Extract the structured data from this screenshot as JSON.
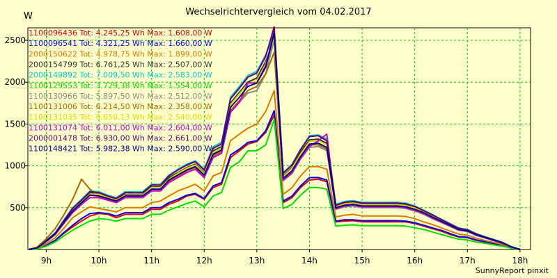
{
  "chart_data": {
    "type": "line",
    "title": "Wechselrichtervergleich vom 04.02.2017",
    "ylabel": "W",
    "xlabel": "",
    "xlim": [
      8.65,
      18.2
    ],
    "ylim": [
      0,
      2650
    ],
    "x_ticks": [
      9,
      10,
      11,
      12,
      13,
      14,
      15,
      16,
      17,
      18
    ],
    "x_tick_labels": [
      "9h",
      "10h",
      "11h",
      "12h",
      "13h",
      "14h",
      "15h",
      "16h",
      "17h",
      "18h"
    ],
    "y_ticks": [
      500,
      1000,
      1500,
      2000,
      2500
    ],
    "y_tick_labels": [
      "500",
      "1000",
      "1500",
      "2000",
      "2500"
    ],
    "grid": true,
    "grid_color": "#00cc00",
    "legend_placement": "top-left",
    "x": [
      8.67,
      8.83,
      9.0,
      9.17,
      9.33,
      9.5,
      9.67,
      9.83,
      10.0,
      10.17,
      10.33,
      10.5,
      10.67,
      10.83,
      11.0,
      11.17,
      11.33,
      11.5,
      11.67,
      11.83,
      12.0,
      12.17,
      12.33,
      12.5,
      12.67,
      12.83,
      13.0,
      13.17,
      13.33,
      13.5,
      13.67,
      13.83,
      14.0,
      14.17,
      14.33,
      14.5,
      14.67,
      14.83,
      15.0,
      15.17,
      15.33,
      15.5,
      15.67,
      15.83,
      16.0,
      16.17,
      16.33,
      16.5,
      16.67,
      16.83,
      17.0,
      17.17,
      17.33,
      17.5,
      17.67,
      17.83,
      18.0
    ],
    "series": [
      {
        "name": "1100096436 Tot: 4.245,25 Wh Max: 1.608,00 W",
        "color": "#dd0000",
        "values": [
          0,
          10,
          50,
          110,
          190,
          270,
          340,
          400,
          430,
          420,
          380,
          420,
          420,
          420,
          480,
          480,
          540,
          580,
          640,
          660,
          600,
          740,
          780,
          1100,
          1180,
          1260,
          1290,
          1400,
          1608,
          560,
          620,
          740,
          830,
          840,
          810,
          330,
          340,
          345,
          330,
          330,
          330,
          330,
          330,
          330,
          310,
          280,
          250,
          220,
          180,
          150,
          140,
          110,
          90,
          70,
          50,
          20,
          0
        ]
      },
      {
        "name": "1100096541 Tot: 4.321,25 Wh Max: 1.660,00 W",
        "color": "#0000dd",
        "values": [
          0,
          10,
          50,
          110,
          200,
          290,
          370,
          430,
          440,
          430,
          400,
          440,
          440,
          440,
          500,
          500,
          560,
          600,
          650,
          670,
          610,
          760,
          800,
          1130,
          1200,
          1280,
          1300,
          1420,
          1660,
          580,
          640,
          760,
          860,
          860,
          830,
          340,
          355,
          355,
          345,
          345,
          345,
          345,
          345,
          340,
          320,
          290,
          260,
          230,
          190,
          155,
          145,
          115,
          95,
          75,
          50,
          20,
          0
        ]
      },
      {
        "name": "2000150622 Tot: 4.978,75 Wh Max: 1.899,00 W",
        "color": "#dd7700",
        "values": [
          0,
          15,
          70,
          140,
          250,
          380,
          450,
          510,
          490,
          470,
          450,
          500,
          500,
          500,
          560,
          580,
          640,
          700,
          740,
          780,
          700,
          880,
          920,
          1300,
          1380,
          1450,
          1500,
          1650,
          1899,
          660,
          740,
          880,
          990,
          990,
          960,
          390,
          410,
          420,
          400,
          400,
          400,
          400,
          400,
          395,
          370,
          330,
          300,
          260,
          220,
          185,
          170,
          135,
          110,
          85,
          60,
          25,
          0
        ]
      },
      {
        "name": "2000154799 Tot: 6.761,25 Wh Max: 2.507,00 W",
        "color": "#333333",
        "values": [
          0,
          20,
          100,
          190,
          330,
          480,
          580,
          680,
          670,
          630,
          600,
          660,
          660,
          660,
          750,
          750,
          860,
          920,
          980,
          1020,
          920,
          1180,
          1230,
          1750,
          1880,
          2000,
          2050,
          2250,
          2507,
          880,
          980,
          1160,
          1310,
          1320,
          1270,
          520,
          550,
          560,
          540,
          540,
          540,
          540,
          540,
          530,
          500,
          450,
          400,
          350,
          300,
          250,
          230,
          180,
          150,
          115,
          80,
          35,
          0
        ]
      },
      {
        "name": "2000149892 Tot: 7.009,50 Wh Max: 2.583,00 W",
        "color": "#00cccc",
        "values": [
          0,
          20,
          110,
          200,
          350,
          500,
          600,
          700,
          690,
          650,
          620,
          690,
          690,
          690,
          780,
          780,
          890,
          960,
          1020,
          1060,
          960,
          1230,
          1280,
          1820,
          1950,
          2080,
          2130,
          2330,
          2583,
          920,
          1020,
          1200,
          1360,
          1370,
          1320,
          540,
          575,
          585,
          565,
          565,
          565,
          565,
          565,
          555,
          520,
          470,
          420,
          365,
          310,
          260,
          240,
          190,
          155,
          120,
          85,
          35,
          0
        ]
      },
      {
        "name": "1100129553 Tot: 3.729,38 Wh Max: 1.554,00 W",
        "color": "#00dd00",
        "values": [
          0,
          5,
          40,
          90,
          160,
          230,
          290,
          340,
          370,
          360,
          340,
          370,
          370,
          370,
          420,
          420,
          470,
          510,
          550,
          580,
          510,
          640,
          680,
          980,
          1050,
          1180,
          1180,
          1250,
          1554,
          490,
          540,
          650,
          740,
          740,
          720,
          280,
          290,
          295,
          285,
          285,
          285,
          285,
          285,
          280,
          260,
          240,
          210,
          180,
          150,
          125,
          115,
          90,
          75,
          55,
          40,
          15,
          0
        ]
      },
      {
        "name": "1100130966 Tot: 5.897,50 Wh Max: 2.512,00 W",
        "color": "#888888",
        "values": [
          0,
          20,
          95,
          180,
          310,
          440,
          540,
          620,
          620,
          590,
          560,
          620,
          620,
          620,
          700,
          700,
          800,
          860,
          920,
          960,
          860,
          1100,
          1150,
          1640,
          1760,
          1870,
          1900,
          2100,
          2512,
          820,
          910,
          1080,
          1220,
          1230,
          1180,
          480,
          510,
          520,
          500,
          500,
          500,
          500,
          500,
          490,
          460,
          420,
          370,
          325,
          275,
          230,
          215,
          170,
          140,
          105,
          75,
          30,
          0
        ]
      },
      {
        "name": "1100131006 Tot: 6.214,50 Wh Max: 2.358,00 W",
        "color": "#aa6600",
        "values": [
          0,
          30,
          130,
          250,
          410,
          600,
          840,
          720,
          640,
          600,
          580,
          640,
          640,
          640,
          720,
          720,
          820,
          880,
          940,
          980,
          880,
          1120,
          1170,
          1660,
          1780,
          1900,
          1950,
          2100,
          2358,
          840,
          930,
          1100,
          1250,
          1250,
          1200,
          490,
          520,
          530,
          510,
          510,
          510,
          510,
          510,
          500,
          470,
          430,
          380,
          330,
          285,
          235,
          220,
          170,
          140,
          110,
          75,
          30,
          0
        ]
      },
      {
        "name": "1100131035 Tot: 6.650,13 Wh Max: 2.540,00 W",
        "color": "#dddd00",
        "values": [
          0,
          20,
          100,
          190,
          330,
          470,
          570,
          660,
          660,
          620,
          590,
          650,
          650,
          650,
          740,
          740,
          840,
          910,
          970,
          1010,
          910,
          1160,
          1210,
          1730,
          1860,
          1980,
          2020,
          2220,
          2540,
          870,
          970,
          1140,
          1290,
          1300,
          1250,
          510,
          545,
          555,
          535,
          535,
          535,
          535,
          535,
          525,
          495,
          445,
          395,
          345,
          295,
          245,
          228,
          178,
          148,
          113,
          80,
          33,
          0
        ]
      },
      {
        "name": "1100131074 Tot: 6.011,00 Wh Max: 2.604,00 W",
        "color": "#cc00cc",
        "values": [
          0,
          20,
          95,
          180,
          310,
          440,
          540,
          620,
          620,
          590,
          560,
          620,
          620,
          620,
          700,
          700,
          800,
          860,
          920,
          960,
          860,
          1100,
          1150,
          1640,
          1760,
          1990,
          1990,
          2200,
          2604,
          830,
          920,
          1090,
          1230,
          1300,
          1380,
          490,
          520,
          530,
          510,
          510,
          510,
          510,
          510,
          500,
          470,
          430,
          380,
          330,
          285,
          235,
          220,
          170,
          140,
          110,
          75,
          30,
          0
        ]
      },
      {
        "name": "2000001478 Tot: 6.930,00 Wh Max: 2.661,00 W",
        "color": "#660066",
        "values": [
          0,
          20,
          105,
          195,
          340,
          490,
          590,
          690,
          680,
          640,
          610,
          680,
          680,
          680,
          770,
          770,
          880,
          950,
          1010,
          1050,
          950,
          1210,
          1260,
          1800,
          1930,
          2060,
          2110,
          2310,
          2661,
          910,
          1010,
          1190,
          1350,
          1360,
          1300,
          530,
          565,
          575,
          555,
          555,
          555,
          555,
          555,
          545,
          515,
          465,
          415,
          360,
          305,
          255,
          235,
          185,
          150,
          118,
          83,
          35,
          0
        ]
      },
      {
        "name": "1100148421 Tot: 5.982,38 Wh Max: 2.590,00 W",
        "color": "#000088",
        "values": [
          0,
          20,
          100,
          185,
          320,
          460,
          560,
          650,
          640,
          610,
          580,
          640,
          640,
          640,
          720,
          720,
          830,
          890,
          950,
          990,
          890,
          1140,
          1190,
          1700,
          1820,
          1950,
          1990,
          2180,
          2590,
          850,
          940,
          1110,
          1260,
          1270,
          1220,
          500,
          530,
          540,
          520,
          520,
          520,
          520,
          520,
          510,
          480,
          440,
          390,
          340,
          290,
          240,
          222,
          175,
          145,
          112,
          78,
          32,
          0
        ]
      }
    ]
  },
  "footer": {
    "credit": "SunnyReport pinxit"
  }
}
